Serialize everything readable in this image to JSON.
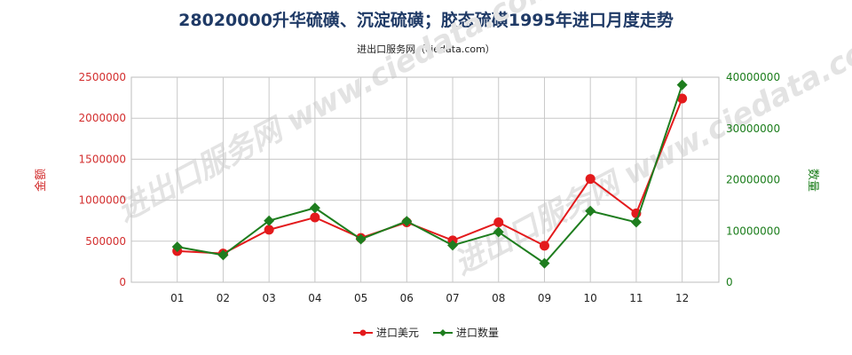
{
  "title": "28020000升华硫磺、沉淀硫磺；胶态硫磺1995年进口月度走势",
  "subtitle": "进出口服务网（ciedata.com）",
  "watermark": "进出口服务网 www.ciedata.com",
  "chart_data": {
    "type": "line",
    "categories": [
      "01",
      "02",
      "03",
      "04",
      "05",
      "06",
      "07",
      "08",
      "09",
      "10",
      "11",
      "12"
    ],
    "ylabel_left": "金额",
    "ylabel_right": "数量",
    "ylim_left": [
      0,
      2500000
    ],
    "yticks_left": [
      "0",
      "500000",
      "1000000",
      "1500000",
      "2000000",
      "2500000"
    ],
    "ylim_right": [
      0,
      40000000
    ],
    "yticks_right": [
      "0",
      "10000000",
      "20000000",
      "30000000",
      "40000000"
    ],
    "grid": true,
    "legend_position": "bottom-center",
    "series": [
      {
        "name": "进口美元",
        "axis": "left",
        "color": "#e31a1c",
        "marker": "circle",
        "values": [
          380000,
          350000,
          640000,
          790000,
          540000,
          730000,
          510000,
          730000,
          445000,
          1260000,
          840000,
          2240000
        ]
      },
      {
        "name": "进口数量",
        "axis": "right",
        "color": "#1e7d1e",
        "marker": "diamond",
        "values": [
          6900000,
          5300000,
          12000000,
          14500000,
          8400000,
          11900000,
          7200000,
          9800000,
          3700000,
          13900000,
          11700000,
          38500000
        ]
      }
    ]
  }
}
